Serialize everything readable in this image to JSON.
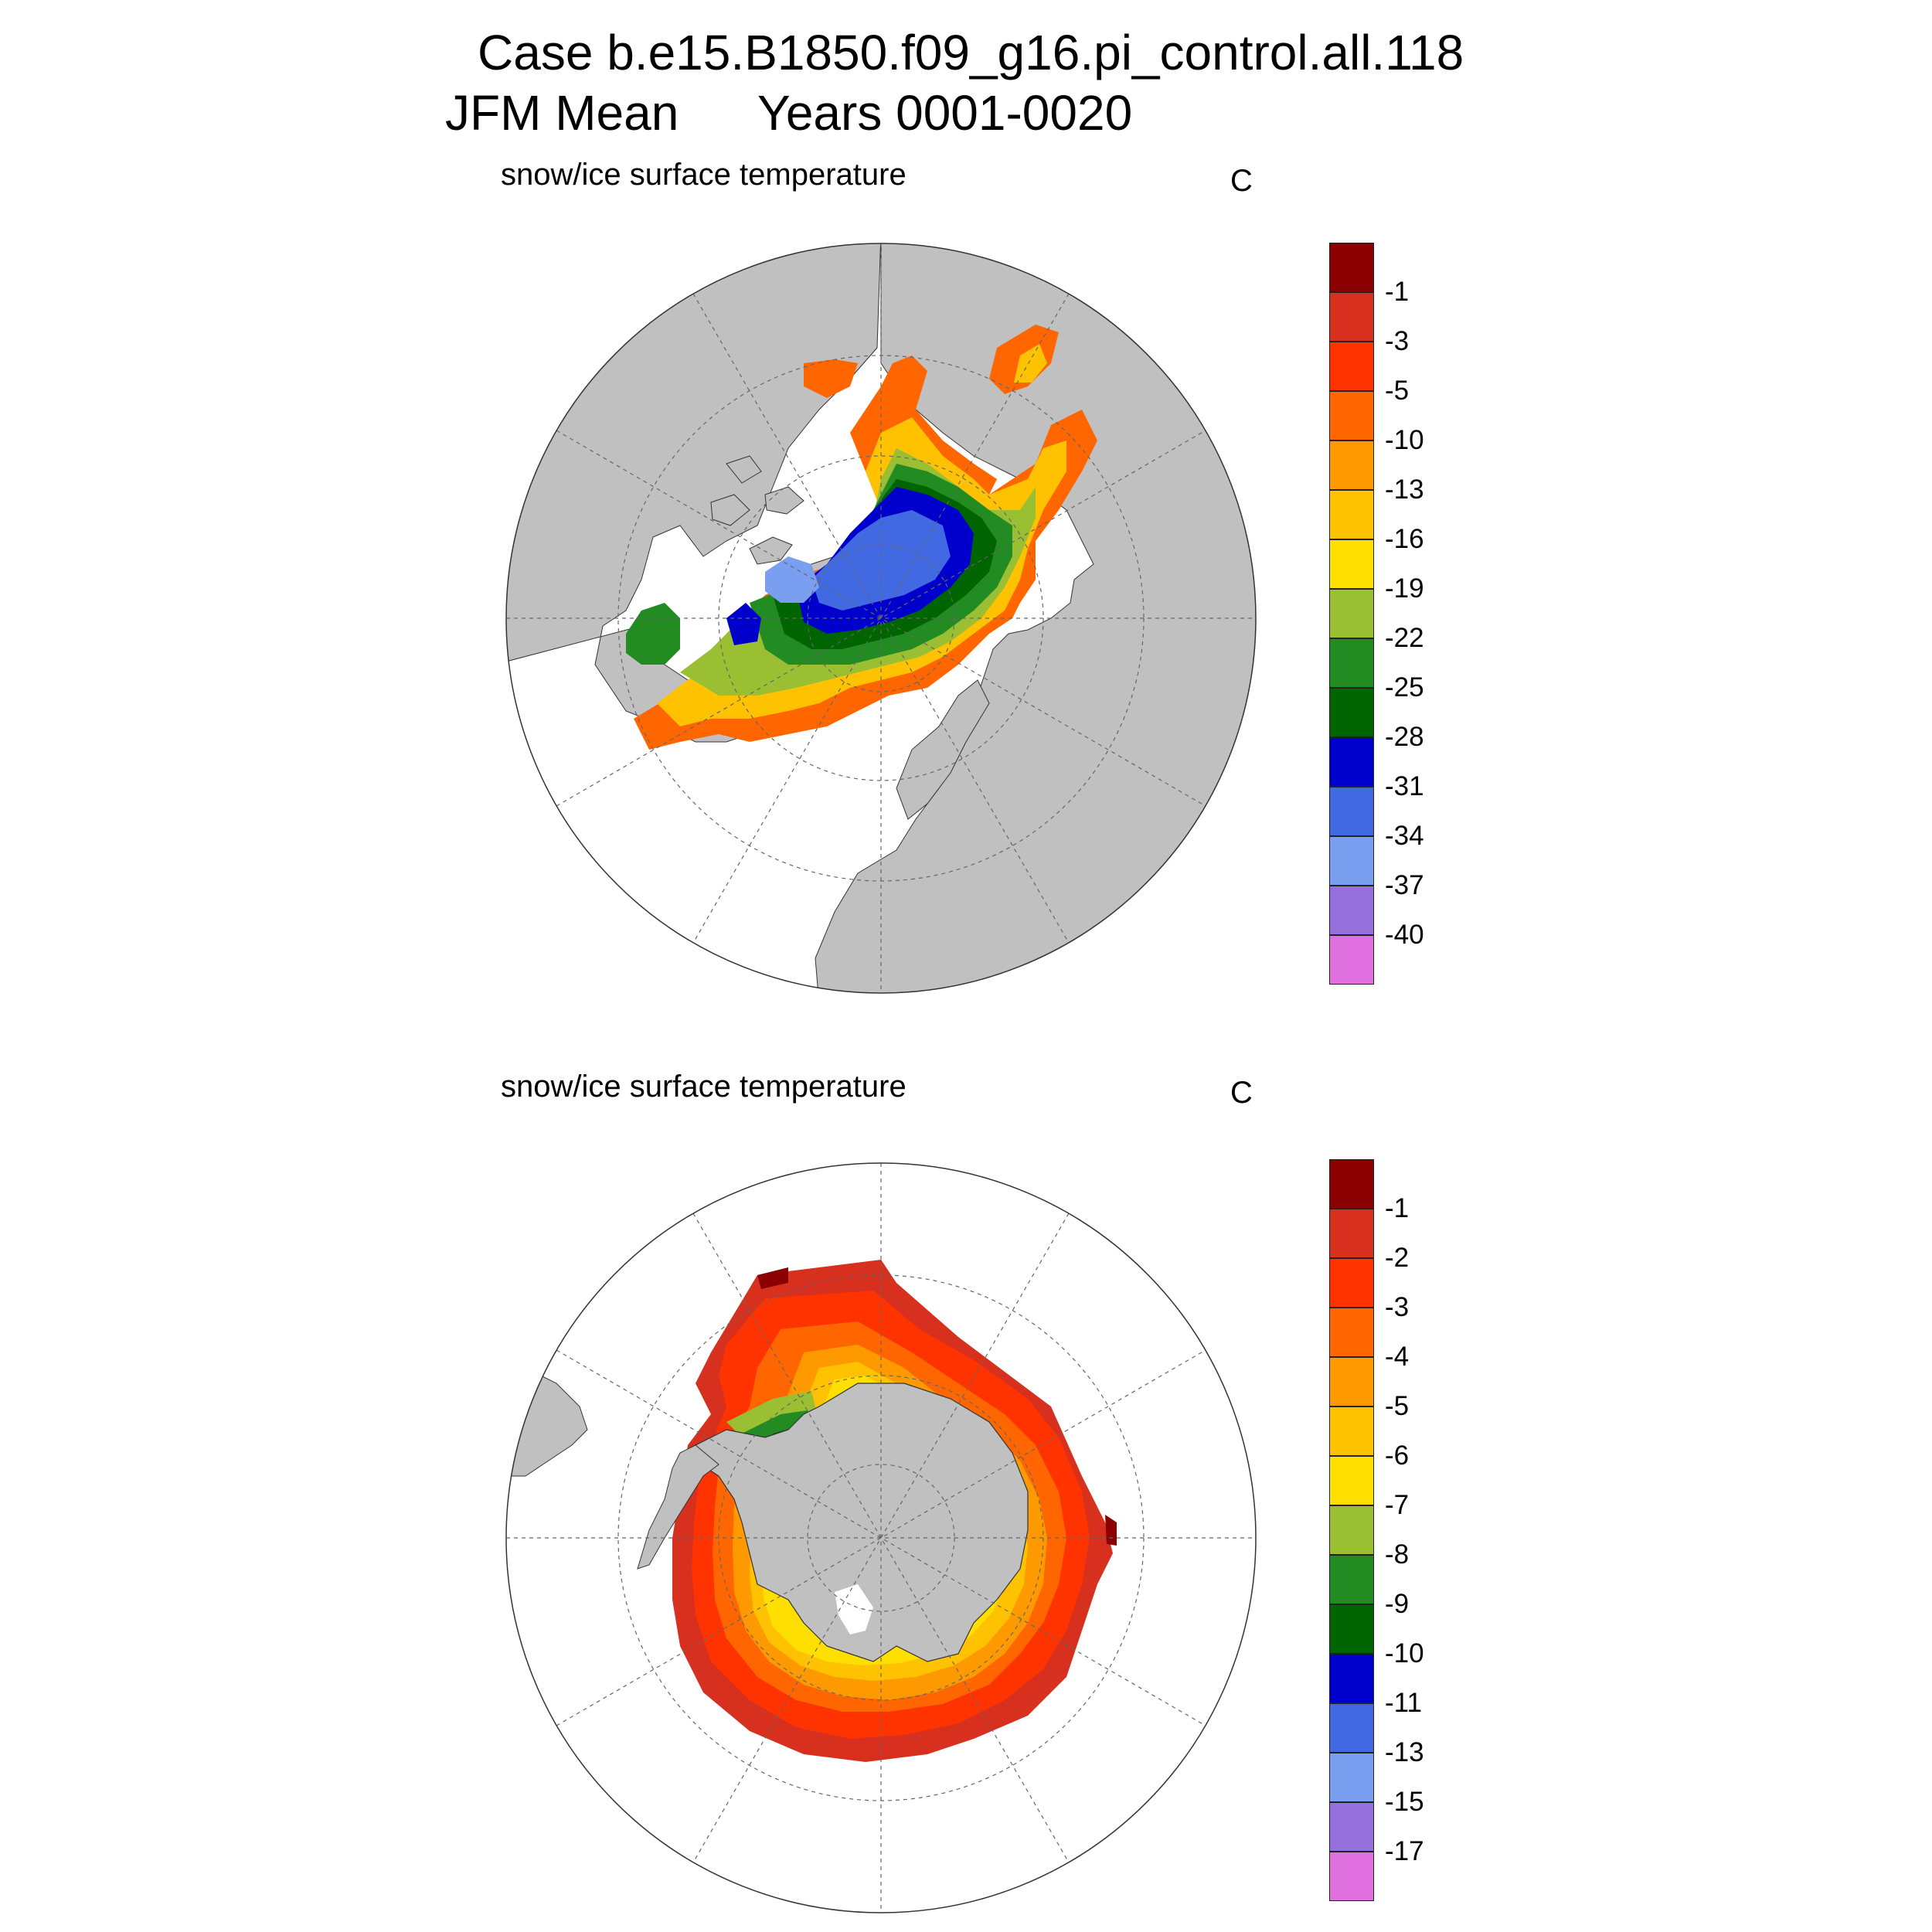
{
  "header": {
    "line1": "Case b.e15.B1850.f09_g16.pi_control.all.118",
    "line2_left": "JFM Mean",
    "line2_right": "Years 0001-0020"
  },
  "colors": {
    "land": "#c0c0c0",
    "ocean": "#ffffff",
    "coast": "#333333"
  },
  "panels": [
    {
      "id": "north",
      "label": "snow/ice surface temperature",
      "units": "C",
      "hemisphere": "north-polar-stereographic",
      "colorbar": {
        "colors": [
          "#8b0000",
          "#d7301f",
          "#ff3300",
          "#ff6600",
          "#ff9900",
          "#ffc200",
          "#ffdf00",
          "#9abf33",
          "#228b22",
          "#006400",
          "#0000cd",
          "#4169e1",
          "#7a9ff0",
          "#9370db",
          "#e070e0"
        ],
        "labels": [
          "-1",
          "-3",
          "-5",
          "-10",
          "-13",
          "-16",
          "-19",
          "-22",
          "-25",
          "-28",
          "-31",
          "-34",
          "-37",
          "-40"
        ]
      }
    },
    {
      "id": "south",
      "label": "snow/ice surface temperature",
      "units": "C",
      "hemisphere": "south-polar-stereographic",
      "colorbar": {
        "colors": [
          "#8b0000",
          "#d7301f",
          "#ff3300",
          "#ff6600",
          "#ff9900",
          "#ffc200",
          "#ffdf00",
          "#9abf33",
          "#228b22",
          "#006400",
          "#0000cd",
          "#4169e1",
          "#7a9ff0",
          "#9370db",
          "#e070e0"
        ],
        "labels": [
          "-1",
          "-2",
          "-3",
          "-4",
          "-5",
          "-6",
          "-7",
          "-8",
          "-9",
          "-10",
          "-11",
          "-13",
          "-15",
          "-17"
        ]
      }
    }
  ]
}
